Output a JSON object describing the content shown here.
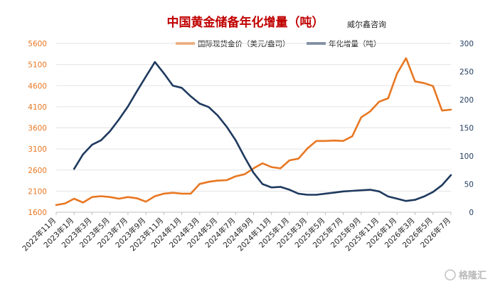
{
  "chart_data": {
    "type": "line",
    "title": "中国黄金储备年化增量（吨）",
    "subtitle": "威尔鑫咨询",
    "watermark": "格隆汇",
    "colors": {
      "gold": "#e87722",
      "reserve": "#1f3a5f",
      "title": "#c00000"
    },
    "x_ticks": [
      "2022年11月",
      "2023年1月",
      "2023年3月",
      "2023年5月",
      "2023年7月",
      "2023年9月",
      "2023年11月",
      "2024年1月",
      "2024年3月",
      "2024年5月",
      "2024年7月",
      "2024年9月",
      "2024年11月",
      "2025年1月",
      "2025年3月",
      "2025年5月",
      "2025年7月",
      "2025年9月",
      "2025年11月",
      "2026年1月",
      "2026年3月",
      "2026年5月",
      "2026年7月"
    ],
    "left_axis": {
      "ylim": [
        1600,
        5600
      ],
      "ticks": [
        1600,
        2100,
        2600,
        3100,
        3600,
        4100,
        4600,
        5100,
        5600
      ]
    },
    "right_axis": {
      "ylim": [
        0,
        300
      ],
      "ticks": [
        0,
        50,
        100,
        150,
        200,
        250,
        300
      ]
    },
    "series": [
      {
        "name": "国际现货金价（美元/盎司）",
        "axis": "left",
        "color": "#e87722",
        "x_start": "2022-11",
        "step_months": 1,
        "values": [
          1770,
          1810,
          1920,
          1830,
          1960,
          1980,
          1960,
          1920,
          1960,
          1930,
          1850,
          1980,
          2040,
          2060,
          2040,
          2040,
          2270,
          2320,
          2350,
          2360,
          2450,
          2500,
          2640,
          2760,
          2670,
          2640,
          2830,
          2870,
          3110,
          3290,
          3290,
          3300,
          3290,
          3400,
          3850,
          3990,
          4220,
          4300,
          4890,
          5250,
          4700,
          4660,
          4590,
          4010,
          4030
        ]
      },
      {
        "name": "年化增量（吨）",
        "axis": "right",
        "color": "#1f3a5f",
        "x_start": "2023-01",
        "step_months": 1,
        "values": [
          77,
          103,
          120,
          128,
          144,
          165,
          188,
          215,
          241,
          267,
          247,
          225,
          221,
          206,
          193,
          187,
          172,
          152,
          128,
          98,
          70,
          50,
          44,
          45,
          40,
          33,
          31,
          31,
          33,
          35,
          37,
          38,
          39,
          40,
          37,
          28,
          24,
          20,
          22,
          28,
          36,
          48,
          66
        ]
      }
    ]
  }
}
